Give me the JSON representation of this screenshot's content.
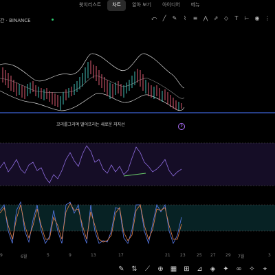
{
  "tabs": [
    "왓치리스트",
    "차트",
    "알아 보기",
    "아이디어",
    "메뉴"
  ],
  "symbol": "간 · BINANCE",
  "annotation": "꼬리를그리며 떨어뜨리는 새로운 지지선",
  "pin_label": "P",
  "xaxis": [
    "9",
    "6월",
    "5",
    "9",
    "13",
    "17",
    "21",
    "23",
    "25",
    "27",
    "29",
    "7월",
    "3"
  ],
  "draw_icons": [
    "cursor-icon",
    "line-icon",
    "pencil-icon",
    "brush-icon",
    "fib-icon",
    "pattern-icon",
    "forecast-icon",
    "shape-icon",
    "text-icon",
    "measure-icon",
    "eye-icon",
    "more-icon"
  ],
  "toolbar_icons": [
    "brush-icon",
    "arrows-icon",
    "trend-icon",
    "crosshair-icon",
    "calendar-icon",
    "plus-icon",
    "ruler-icon",
    "layers-icon",
    "gear-icon",
    "link-icon",
    "sparkle-icon",
    "pin-icon"
  ]
}
